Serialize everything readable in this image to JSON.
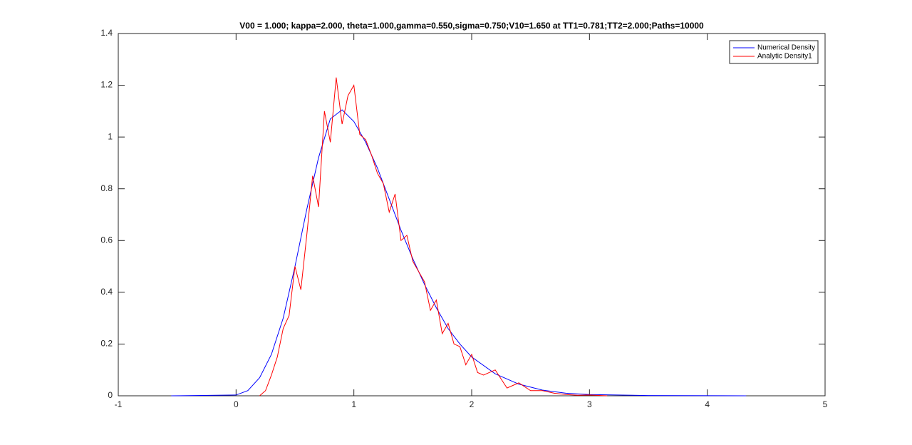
{
  "chart_data": {
    "type": "line",
    "title": "V00 = 1.000; kappa=2.000, theta=1.000,gamma=0.550,sigma=0.750;V10=1.650 at TT1=0.781;TT2=2.000;Paths=10000",
    "xlim": [
      -1,
      5
    ],
    "xticks": [
      -1,
      0,
      1,
      2,
      3,
      4,
      5
    ],
    "ylim": [
      0,
      1.4
    ],
    "yticks": [
      0,
      0.2,
      0.4,
      0.6,
      0.8,
      1,
      1.2,
      1.4
    ],
    "grid": false,
    "legend": "northeast",
    "series": [
      {
        "name": "Numerical Density",
        "color": "#0000ff",
        "x": [
          -0.55,
          0,
          0.1,
          0.2,
          0.3,
          0.4,
          0.5,
          0.6,
          0.7,
          0.8,
          0.9,
          1.0,
          1.1,
          1.2,
          1.3,
          1.4,
          1.5,
          1.6,
          1.7,
          1.8,
          1.9,
          2.0,
          2.2,
          2.4,
          2.6,
          2.8,
          3.0,
          3.5,
          4.33
        ],
        "values": [
          0,
          0.003,
          0.02,
          0.07,
          0.16,
          0.3,
          0.5,
          0.72,
          0.92,
          1.07,
          1.105,
          1.06,
          0.98,
          0.88,
          0.76,
          0.64,
          0.53,
          0.43,
          0.34,
          0.26,
          0.2,
          0.15,
          0.085,
          0.045,
          0.022,
          0.01,
          0.005,
          0.001,
          0
        ]
      },
      {
        "name": "Analytic Density1",
        "color": "#ff0000",
        "x": [
          0.2,
          0.25,
          0.3,
          0.35,
          0.4,
          0.45,
          0.5,
          0.55,
          0.6,
          0.65,
          0.7,
          0.75,
          0.8,
          0.85,
          0.9,
          0.95,
          1.0,
          1.05,
          1.1,
          1.15,
          1.2,
          1.25,
          1.3,
          1.35,
          1.4,
          1.45,
          1.5,
          1.55,
          1.6,
          1.65,
          1.7,
          1.75,
          1.8,
          1.85,
          1.9,
          1.95,
          2.0,
          2.05,
          2.1,
          2.2,
          2.3,
          2.4,
          2.5,
          2.6,
          2.7,
          2.8,
          2.9,
          3.0,
          3.15
        ],
        "values": [
          0,
          0.02,
          0.08,
          0.15,
          0.26,
          0.31,
          0.5,
          0.41,
          0.62,
          0.85,
          0.73,
          1.1,
          0.98,
          1.23,
          1.05,
          1.16,
          1.2,
          1.01,
          0.99,
          0.93,
          0.86,
          0.82,
          0.71,
          0.78,
          0.6,
          0.62,
          0.52,
          0.48,
          0.44,
          0.33,
          0.37,
          0.24,
          0.28,
          0.2,
          0.19,
          0.12,
          0.16,
          0.09,
          0.08,
          0.1,
          0.03,
          0.05,
          0.02,
          0.02,
          0.01,
          0.005,
          0.002,
          0.003,
          0
        ]
      }
    ]
  }
}
